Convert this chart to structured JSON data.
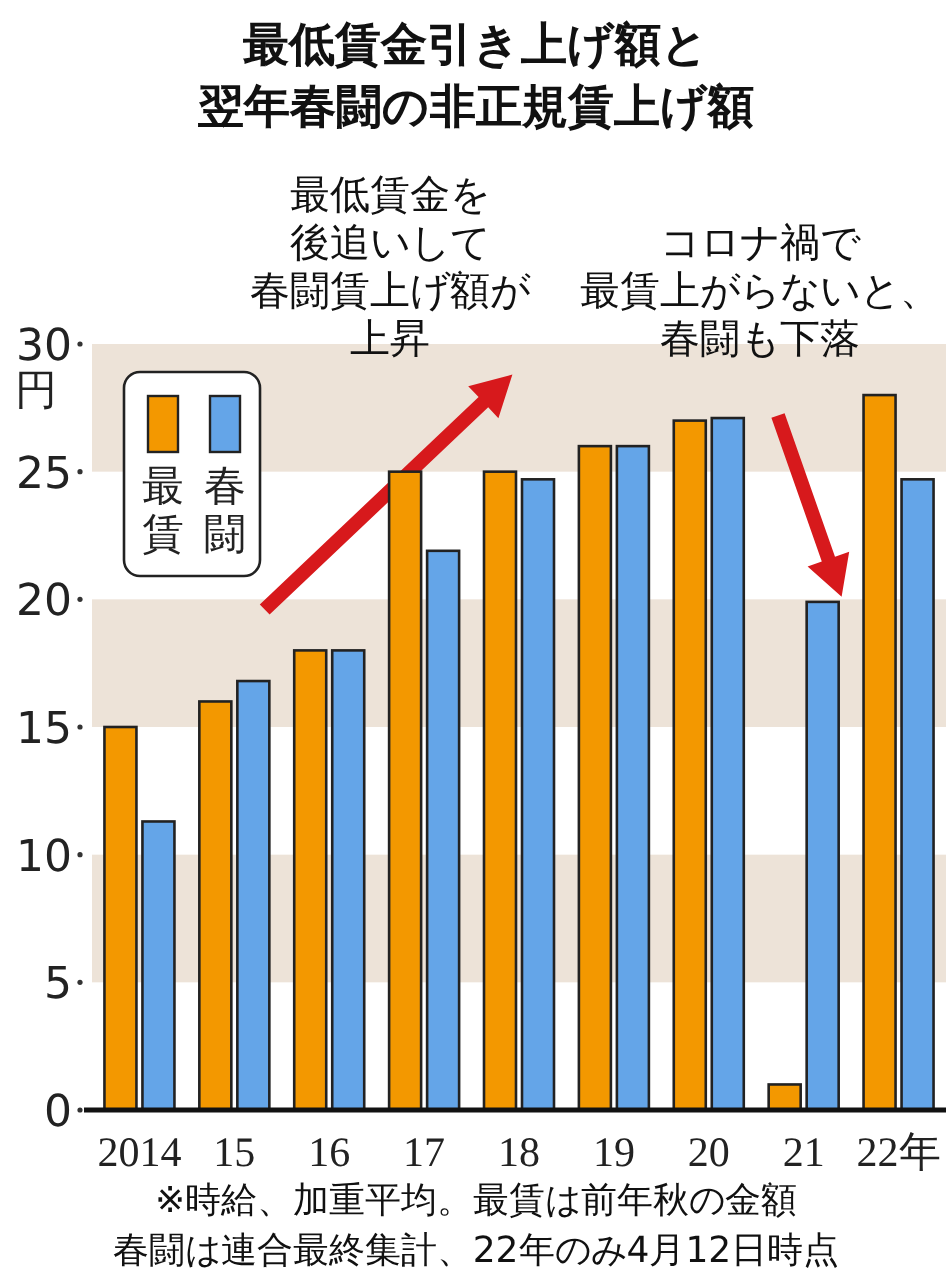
{
  "chart_data": {
    "type": "bar",
    "title": "最低賃金引き上げ額と翌年春闘の非正規賃上げ額",
    "ylabel": "円",
    "categories": [
      "2014",
      "15",
      "16",
      "17",
      "18",
      "19",
      "20",
      "21",
      "22年"
    ],
    "series": [
      {
        "name": "最賃",
        "color": "#f39800",
        "values": [
          15,
          16,
          18,
          25,
          25,
          26,
          27,
          1,
          28
        ]
      },
      {
        "name": "春闘",
        "color": "#64a5e8",
        "values": [
          11.3,
          16.8,
          18,
          21.9,
          24.7,
          26,
          27.1,
          19.9,
          24.7
        ]
      }
    ],
    "ylim": [
      0,
      30
    ],
    "yticks": [
      0,
      5,
      10,
      15,
      20,
      25,
      30
    ],
    "bands": [
      {
        "axis": "y",
        "from": 5,
        "to": 10,
        "color": "#ede3d8"
      },
      {
        "axis": "y",
        "from": 15,
        "to": 20,
        "color": "#ede3d8"
      },
      {
        "axis": "y",
        "from": 25,
        "to": 30,
        "color": "#ede3d8"
      }
    ],
    "legend": "top left",
    "grid": false,
    "annotations": [
      "最低賃金を後追いして春闘賃上げ額が上昇",
      "コロナ禍で最賃上がらないと、春闘も下落",
      "※時給、加重平均。最賃は前年秋の金額春闘は連合最終集計、22年のみ4月12日時点"
    ]
  }
}
